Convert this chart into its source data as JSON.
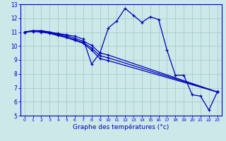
{
  "xlabel": "Graphe des températures (°c)",
  "bg_color": "#cce8e8",
  "grid_color": "#aacccc",
  "line_color": "#0000bb",
  "xlim": [
    -0.5,
    23.5
  ],
  "ylim": [
    5,
    13
  ],
  "yticks": [
    5,
    6,
    7,
    8,
    9,
    10,
    11,
    12,
    13
  ],
  "xticks": [
    0,
    1,
    2,
    3,
    4,
    5,
    6,
    7,
    8,
    9,
    10,
    11,
    12,
    13,
    14,
    15,
    16,
    17,
    18,
    19,
    20,
    21,
    22,
    23
  ],
  "line1_x": [
    0,
    1,
    2,
    3,
    4,
    5,
    6,
    7,
    8,
    9,
    10,
    11,
    12,
    13,
    14,
    15,
    16,
    17,
    18,
    19,
    20,
    21,
    22,
    23
  ],
  "line1_y": [
    11.0,
    11.1,
    11.1,
    11.0,
    10.9,
    10.8,
    10.7,
    10.5,
    8.7,
    9.5,
    11.3,
    11.8,
    12.7,
    12.2,
    11.7,
    12.1,
    11.9,
    9.7,
    7.9,
    7.9,
    6.5,
    6.4,
    5.4,
    6.7
  ],
  "line2_x": [
    0,
    1,
    2,
    3,
    4,
    5,
    6,
    7,
    8,
    9,
    10,
    23
  ],
  "line2_y": [
    11.0,
    11.1,
    11.1,
    11.0,
    10.85,
    10.75,
    10.55,
    10.35,
    10.05,
    9.5,
    9.35,
    6.7
  ],
  "line3_x": [
    0,
    1,
    2,
    3,
    4,
    5,
    6,
    7,
    8,
    9,
    10,
    23
  ],
  "line3_y": [
    11.0,
    11.1,
    11.05,
    10.95,
    10.8,
    10.65,
    10.45,
    10.25,
    9.85,
    9.3,
    9.15,
    6.7
  ],
  "line4_x": [
    0,
    1,
    2,
    3,
    4,
    5,
    6,
    7,
    8,
    9,
    10,
    23
  ],
  "line4_y": [
    11.0,
    11.05,
    11.0,
    10.9,
    10.75,
    10.6,
    10.4,
    10.2,
    9.7,
    9.1,
    8.95,
    6.7
  ]
}
